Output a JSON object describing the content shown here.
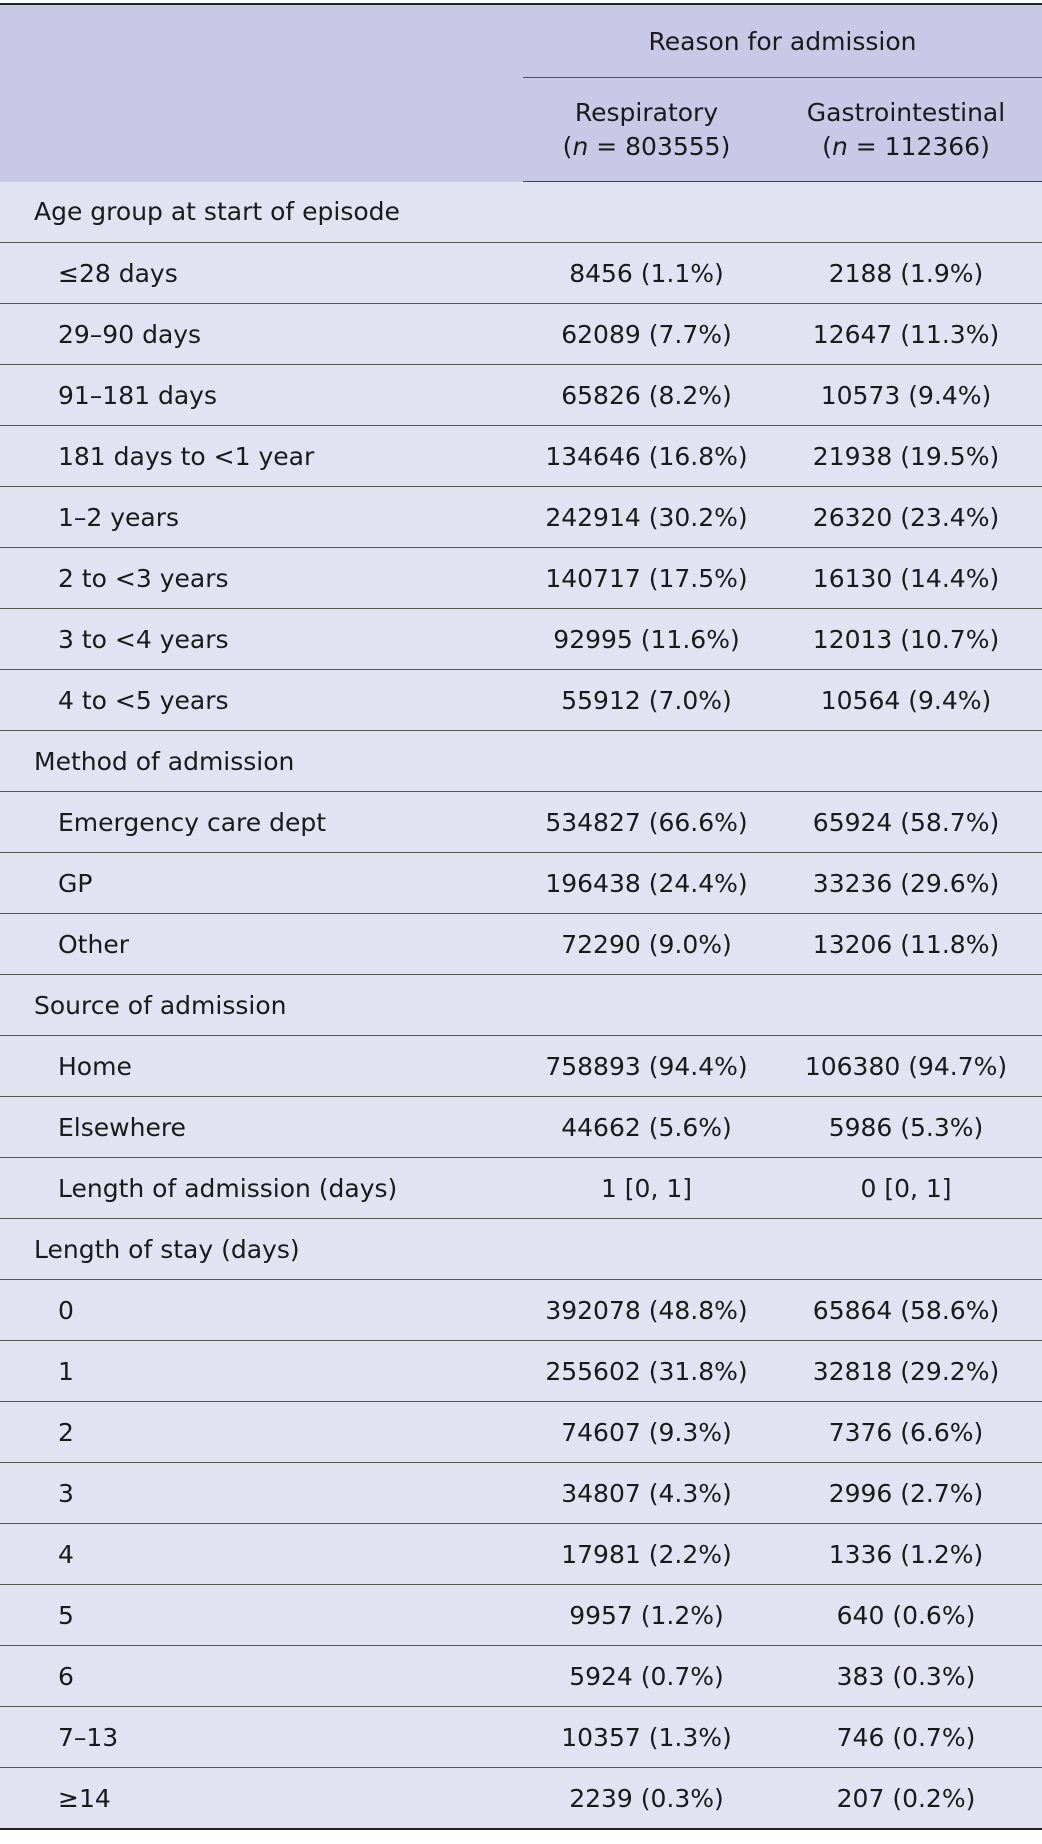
{
  "header": {
    "group": "Reason for admission",
    "columns": [
      {
        "name": "Respiratory",
        "n": "(n = 803555)"
      },
      {
        "name": "Gastrointestinal",
        "n": "(n = 112366)"
      }
    ]
  },
  "sections": [
    {
      "title": "Age group at start of episode",
      "rows": [
        {
          "label": "≤28 days",
          "values": [
            "8456 (1.1%)",
            "2188 (1.9%)"
          ]
        },
        {
          "label": "29–90 days",
          "values": [
            "62089 (7.7%)",
            "12647 (11.3%)"
          ]
        },
        {
          "label": "91–181 days",
          "values": [
            "65826 (8.2%)",
            "10573 (9.4%)"
          ]
        },
        {
          "label": "181 days to <1 year",
          "values": [
            "134646 (16.8%)",
            "21938 (19.5%)"
          ]
        },
        {
          "label": "1–2 years",
          "values": [
            "242914 (30.2%)",
            "26320 (23.4%)"
          ]
        },
        {
          "label": "2 to <3 years",
          "values": [
            "140717 (17.5%)",
            "16130 (14.4%)"
          ]
        },
        {
          "label": "3 to <4 years",
          "values": [
            "92995 (11.6%)",
            "12013 (10.7%)"
          ]
        },
        {
          "label": "4 to <5 years",
          "values": [
            "55912 (7.0%)",
            "10564 (9.4%)"
          ]
        }
      ]
    },
    {
      "title": "Method of admission",
      "rows": [
        {
          "label": "Emergency care dept",
          "values": [
            "534827 (66.6%)",
            "65924 (58.7%)"
          ]
        },
        {
          "label": "GP",
          "values": [
            "196438 (24.4%)",
            "33236 (29.6%)"
          ]
        },
        {
          "label": "Other",
          "values": [
            "72290 (9.0%)",
            "13206 (11.8%)"
          ]
        }
      ]
    },
    {
      "title": "Source of admission",
      "rows": [
        {
          "label": "Home",
          "values": [
            "758893 (94.4%)",
            "106380 (94.7%)"
          ]
        },
        {
          "label": "Elsewhere",
          "values": [
            "44662 (5.6%)",
            "5986 (5.3%)"
          ]
        },
        {
          "label": "Length of admission (days)",
          "values": [
            "1 [0, 1]",
            "0 [0, 1]"
          ]
        }
      ]
    },
    {
      "title": "Length of stay (days)",
      "rows": [
        {
          "label": "0",
          "values": [
            "392078 (48.8%)",
            "65864 (58.6%)"
          ]
        },
        {
          "label": "1",
          "values": [
            "255602 (31.8%)",
            "32818 (29.2%)"
          ]
        },
        {
          "label": "2",
          "values": [
            "74607 (9.3%)",
            "7376 (6.6%)"
          ]
        },
        {
          "label": "3",
          "values": [
            "34807 (4.3%)",
            "2996 (2.7%)"
          ]
        },
        {
          "label": "4",
          "values": [
            "17981 (2.2%)",
            "1336 (1.2%)"
          ]
        },
        {
          "label": "5",
          "values": [
            "9957 (1.2%)",
            "640 (0.6%)"
          ]
        },
        {
          "label": "6",
          "values": [
            "5924 (0.7%)",
            "383 (0.3%)"
          ]
        },
        {
          "label": "7–13",
          "values": [
            "10357 (1.3%)",
            "746 (0.7%)"
          ]
        },
        {
          "label": "≥14",
          "values": [
            "2239 (0.3%)",
            "207 (0.2%)"
          ]
        }
      ]
    }
  ]
}
